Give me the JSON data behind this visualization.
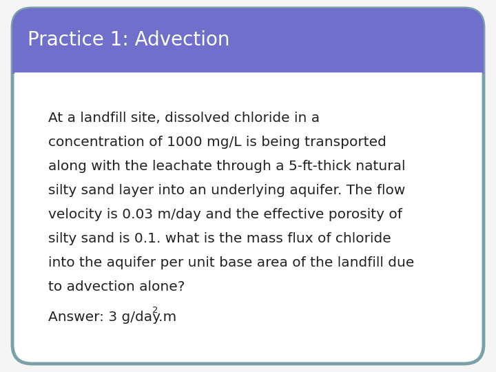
{
  "title": "Practice 1: Advection",
  "title_bg_color": "#7070cc",
  "title_text_color": "#ffffff",
  "title_fontsize": 20,
  "body_bg_color": "#ffffff",
  "slide_bg_color": "#f5f5f5",
  "card_border_color": "#7aaan0",
  "card_border_hex": "#7aa0aa",
  "body_text_line1": "At a landfill site, dissolved chloride in a",
  "body_text_line2": "concentration of 1000 mg/L is being transported",
  "body_text_line3": "along with the leachate through a 5-ft-thick natural",
  "body_text_line4": "silty sand layer into an underlying aquifer. The flow",
  "body_text_line5": "velocity is 0.03 m/day and the effective porosity of",
  "body_text_line6": "silty sand is 0.1. what is the mass flux of chloride",
  "body_text_line7": "into the aquifer per unit base area of the landfill due",
  "body_text_line8": "to advection alone?",
  "answer_main": "Answer: 3 g/day.m",
  "answer_superscript": "2",
  "body_fontsize": 14.5,
  "answer_fontsize": 14.5,
  "text_color": "#222222"
}
